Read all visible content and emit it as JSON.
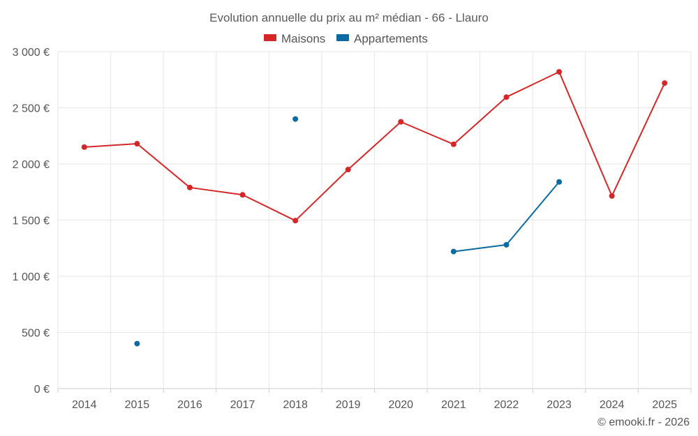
{
  "chart_data": {
    "type": "line",
    "title": "Evolution annuelle du prix au m² médian - 66 - Llauro",
    "categories": [
      "2014",
      "2015",
      "2016",
      "2017",
      "2018",
      "2019",
      "2020",
      "2021",
      "2022",
      "2023",
      "2024",
      "2025"
    ],
    "ylim": [
      0,
      3000
    ],
    "y_ticks": [
      0,
      500,
      1000,
      1500,
      2000,
      2500,
      3000
    ],
    "y_tick_labels": [
      "0 €",
      "500 €",
      "1 000 €",
      "1 500 €",
      "2 000 €",
      "2 500 €",
      "3 000 €"
    ],
    "grid": true,
    "legend_position": "top-center",
    "series": [
      {
        "name": "Maisons",
        "color": "#d62728",
        "values": [
          2150,
          2180,
          1790,
          1725,
          1495,
          1950,
          2375,
          2175,
          2595,
          2820,
          1715,
          2720
        ]
      },
      {
        "name": "Appartements",
        "color": "#0b6aa2",
        "values": [
          null,
          400,
          null,
          null,
          2400,
          null,
          null,
          1220,
          1280,
          1840,
          null,
          null
        ]
      }
    ],
    "credit": "© emooki.fr - 2026"
  }
}
